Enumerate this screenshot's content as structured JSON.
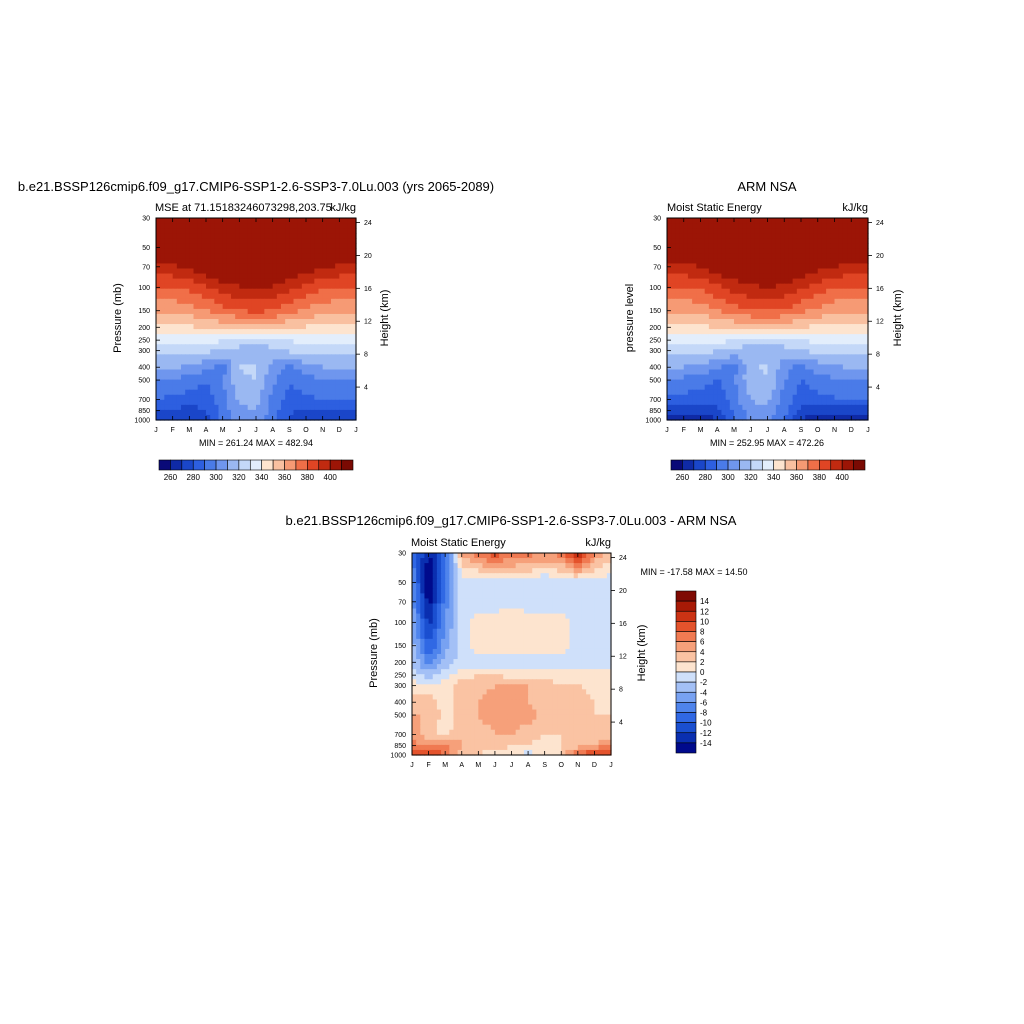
{
  "colors": {
    "mse_palette": [
      "#0a0a78",
      "#0f2aa6",
      "#1a46c9",
      "#2d5fe0",
      "#4a7be8",
      "#6f96ee",
      "#9ab8f2",
      "#c4d8f8",
      "#e3eefc",
      "#fde4cf",
      "#f9c0a0",
      "#f69a74",
      "#f06f48",
      "#e04524",
      "#c12a10",
      "#9c1506",
      "#7a0a03"
    ],
    "diff_palette": [
      "#000a8c",
      "#0a2fb0",
      "#1a4fd0",
      "#3068e4",
      "#4f84ec",
      "#78a2f2",
      "#a3c0f6",
      "#cfe0fa",
      "#fde4cf",
      "#fac3a3",
      "#f6a07a",
      "#f07a52",
      "#e4532c",
      "#cc3314",
      "#a81a06",
      "#7f0a03"
    ]
  },
  "panels": [
    {
      "title": "b.e21.BSSP126cmip6.f09_g17.CMIP6-SSP1-2.6-SSP3-7.0Lu.003 (yrs 2065-2089)",
      "left_string": "MSE at 71.15183246073298,203.75",
      "right_string": "kJ/kg",
      "ylabel_left": "Pressure (mb)",
      "ylabel_right": "Height (km)",
      "minmax": "MIN = 261.24  MAX = 482.94"
    },
    {
      "title": "ARM NSA",
      "left_string": "Moist Static Energy",
      "right_string": "kJ/kg",
      "ylabel_left": "pressure level",
      "ylabel_right": "Height (km)",
      "minmax": "MIN = 252.95  MAX = 472.26"
    },
    {
      "title": "b.e21.BSSP126cmip6.f09_g17.CMIP6-SSP1-2.6-SSP3-7.0Lu.003 - ARM NSA",
      "left_string": "Moist Static Energy",
      "right_string": "kJ/kg",
      "ylabel_left": "Pressure (mb)",
      "ylabel_right": "Height (km)",
      "minmax": "MIN = -17.58  MAX =  14.50"
    }
  ],
  "axes": {
    "months": [
      "J",
      "F",
      "M",
      "A",
      "M",
      "J",
      "J",
      "A",
      "S",
      "O",
      "N",
      "D",
      "J"
    ],
    "pressure_ticks": [
      "30",
      "50",
      "70",
      "100",
      "150",
      "200",
      "250",
      "300",
      "400",
      "500",
      "700",
      "850",
      "1000"
    ],
    "height_ticks": [
      "24",
      "20",
      "16",
      "12",
      "8",
      "4"
    ]
  },
  "colorbars": {
    "mse_labels": [
      "260",
      "280",
      "300",
      "320",
      "340",
      "360",
      "380",
      "400"
    ],
    "diff_labels": [
      "14",
      "12",
      "10",
      "8",
      "6",
      "4",
      "2",
      "0",
      "-2",
      "-4",
      "-6",
      "-8",
      "-10",
      "-12",
      "-14"
    ]
  },
  "chart_data": [
    {
      "type": "heatmap",
      "title": "b.e21.BSSP126cmip6.f09_g17.CMIP6-SSP1-2.6-SSP3-7.0Lu.003 (yrs 2065-2089)",
      "subtitle": "MSE at 71.15183246073298,203.75",
      "units": "kJ/kg",
      "x": [
        "J",
        "F",
        "M",
        "A",
        "M",
        "J",
        "J",
        "A",
        "S",
        "O",
        "N",
        "D",
        "J"
      ],
      "y_pressure_mb": [
        30,
        50,
        70,
        100,
        150,
        200,
        250,
        300,
        400,
        500,
        700,
        850,
        1000
      ],
      "ylabel": "Pressure (mb)",
      "y2label": "Height (km)",
      "min": 261.24,
      "max": 482.94,
      "levels": [
        260,
        270,
        280,
        290,
        300,
        310,
        320,
        330,
        340,
        350,
        360,
        370,
        380,
        390,
        400
      ],
      "values": [
        [
          470,
          470,
          470,
          470,
          470,
          470,
          470,
          470,
          470,
          470,
          470,
          470,
          470
        ],
        [
          418,
          420,
          424,
          430,
          436,
          440,
          442,
          440,
          434,
          428,
          422,
          419,
          418
        ],
        [
          398,
          398,
          402,
          408,
          414,
          418,
          420,
          418,
          412,
          406,
          401,
          398,
          398
        ],
        [
          380,
          380,
          383,
          389,
          395,
          399,
          401,
          399,
          393,
          387,
          382,
          380,
          380
        ],
        [
          362,
          362,
          365,
          370,
          376,
          380,
          382,
          380,
          374,
          368,
          364,
          362,
          362
        ],
        [
          347,
          347,
          349,
          351,
          353,
          354,
          354,
          353,
          351,
          349,
          348,
          347,
          347
        ],
        [
          336,
          336,
          336,
          336,
          330,
          326,
          324,
          326,
          330,
          334,
          336,
          336,
          336
        ],
        [
          324,
          324,
          323,
          322,
          318,
          316,
          315,
          318,
          322,
          323,
          324,
          324,
          324
        ],
        [
          312,
          311,
          309,
          303,
          295,
          320,
          322,
          305,
          298,
          306,
          310,
          312,
          312
        ],
        [
          300,
          298,
          296,
          290,
          300,
          318,
          320,
          303,
          290,
          296,
          299,
          300,
          300
        ],
        [
          290,
          288,
          286,
          284,
          296,
          312,
          314,
          296,
          286,
          288,
          290,
          290,
          290
        ],
        [
          280,
          278,
          276,
          280,
          294,
          308,
          310,
          296,
          282,
          278,
          279,
          280,
          280
        ],
        [
          272,
          270,
          270,
          276,
          292,
          304,
          306,
          292,
          278,
          272,
          271,
          272,
          272
        ]
      ]
    },
    {
      "type": "heatmap",
      "title": "ARM NSA",
      "subtitle": "Moist Static Energy",
      "units": "kJ/kg",
      "x": [
        "J",
        "F",
        "M",
        "A",
        "M",
        "J",
        "J",
        "A",
        "S",
        "O",
        "N",
        "D",
        "J"
      ],
      "y_pressure_mb": [
        30,
        50,
        70,
        100,
        150,
        200,
        250,
        300,
        400,
        500,
        700,
        850,
        1000
      ],
      "ylabel": "pressure level",
      "y2label": "Height (km)",
      "min": 252.95,
      "max": 472.26,
      "levels": [
        260,
        270,
        280,
        290,
        300,
        310,
        320,
        330,
        340,
        350,
        360,
        370,
        380,
        390,
        400
      ],
      "values": [
        [
          465,
          465,
          465,
          465,
          465,
          465,
          465,
          465,
          465,
          465,
          465,
          465,
          465
        ],
        [
          416,
          418,
          422,
          428,
          434,
          438,
          440,
          438,
          432,
          426,
          420,
          417,
          416
        ],
        [
          397,
          397,
          400,
          406,
          412,
          416,
          418,
          416,
          410,
          404,
          400,
          397,
          397
        ],
        [
          379,
          379,
          382,
          388,
          394,
          398,
          400,
          398,
          392,
          386,
          381,
          379,
          379
        ],
        [
          361,
          361,
          364,
          369,
          375,
          379,
          381,
          379,
          373,
          367,
          363,
          361,
          361
        ],
        [
          346,
          346,
          348,
          350,
          352,
          353,
          353,
          352,
          350,
          348,
          347,
          346,
          346
        ],
        [
          335,
          335,
          335,
          335,
          329,
          325,
          323,
          325,
          329,
          333,
          335,
          335,
          335
        ],
        [
          323,
          323,
          322,
          321,
          317,
          315,
          314,
          317,
          321,
          322,
          323,
          323,
          323
        ],
        [
          311,
          310,
          308,
          302,
          294,
          319,
          321,
          304,
          297,
          305,
          309,
          311,
          311
        ],
        [
          299,
          297,
          295,
          289,
          299,
          317,
          319,
          302,
          289,
          295,
          298,
          299,
          299
        ],
        [
          289,
          287,
          285,
          283,
          295,
          311,
          313,
          295,
          285,
          287,
          289,
          289,
          289
        ],
        [
          276,
          274,
          272,
          278,
          292,
          306,
          308,
          294,
          278,
          272,
          273,
          276,
          276
        ],
        [
          262,
          260,
          262,
          270,
          288,
          302,
          304,
          288,
          270,
          262,
          261,
          262,
          262
        ]
      ]
    },
    {
      "type": "heatmap",
      "title": "b.e21.BSSP126cmip6.f09_g17.CMIP6-SSP1-2.6-SSP3-7.0Lu.003 - ARM NSA",
      "subtitle": "Moist Static Energy",
      "units": "kJ/kg",
      "x": [
        "J",
        "F",
        "M",
        "A",
        "M",
        "J",
        "J",
        "A",
        "S",
        "O",
        "N",
        "D",
        "J"
      ],
      "y_pressure_mb": [
        30,
        50,
        70,
        100,
        150,
        200,
        250,
        300,
        400,
        500,
        700,
        850,
        1000
      ],
      "ylabel": "Pressure (mb)",
      "y2label": "Height (km)",
      "min": -17.58,
      "max": 14.5,
      "levels": [
        -14,
        -12,
        -10,
        -8,
        -6,
        -4,
        -2,
        0,
        2,
        4,
        6,
        8,
        10,
        12,
        14
      ],
      "values": [
        [
          -8,
          -14,
          -9,
          4,
          8,
          9,
          8,
          7,
          6,
          7,
          13,
          6,
          3
        ],
        [
          -6,
          -17,
          -8,
          -1,
          -2,
          -1,
          -1,
          -1,
          -2,
          -1,
          -1,
          -1,
          -1
        ],
        [
          -5,
          -15,
          -7,
          -1,
          -1,
          -1,
          -1,
          -1,
          -1,
          -1,
          -2,
          -1,
          -1
        ],
        [
          -4,
          -13,
          -6,
          -1,
          1,
          1,
          2,
          1,
          1,
          1,
          -1,
          -1,
          -1
        ],
        [
          -3,
          -10,
          -5,
          -1,
          1,
          1,
          1,
          1,
          1,
          1,
          -1,
          -1,
          -1
        ],
        [
          -2,
          -7,
          -3,
          -1,
          -1,
          -2,
          -1,
          -1,
          -2,
          -1,
          -1,
          -1,
          -1
        ],
        [
          -1,
          -3,
          -1,
          1,
          2,
          2,
          1,
          1,
          1,
          1,
          1,
          1,
          1
        ],
        [
          1,
          1,
          1,
          3,
          3,
          4,
          5,
          4,
          3,
          2,
          2,
          1,
          1
        ],
        [
          3,
          3,
          1,
          3,
          4,
          5,
          5,
          4,
          3,
          2,
          4,
          2,
          1
        ],
        [
          4,
          4,
          1,
          3,
          4,
          5,
          5,
          5,
          3,
          2,
          4,
          2,
          2
        ],
        [
          5,
          3,
          1,
          4,
          3,
          4,
          4,
          3,
          2,
          2,
          4,
          2,
          3
        ],
        [
          7,
          5,
          6,
          4,
          3,
          3,
          2,
          2,
          1,
          2,
          3,
          4,
          7
        ],
        [
          9,
          12,
          8,
          3,
          2,
          1,
          1,
          -1,
          1,
          2,
          9,
          10,
          10
        ]
      ]
    }
  ]
}
